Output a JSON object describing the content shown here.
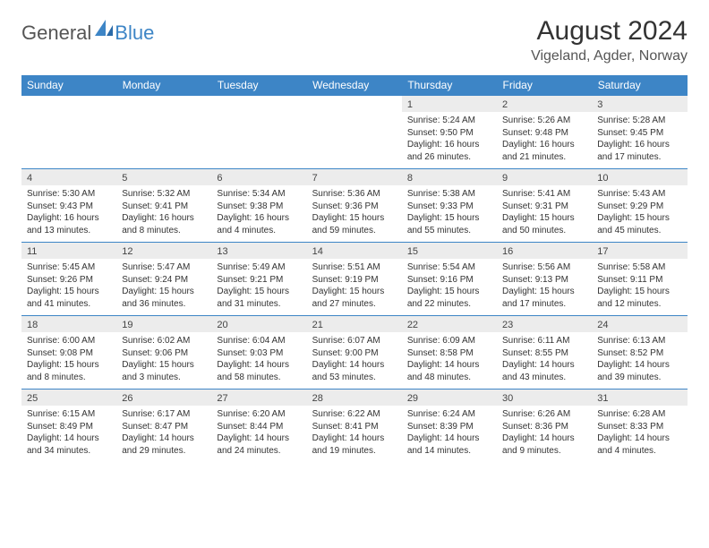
{
  "logo": {
    "text1": "General",
    "text2": "Blue"
  },
  "title": "August 2024",
  "location": "Vigeland, Agder, Norway",
  "colors": {
    "header_blue": "#3d85c6",
    "row_divider": "#3d85c6",
    "daynum_bg": "#ececec",
    "page_bg": "#ffffff",
    "text": "#333333"
  },
  "typography": {
    "title_fontsize": 30,
    "location_fontsize": 16,
    "header_fontsize": 12,
    "cell_fontsize": 10,
    "daynum_fontsize": 11
  },
  "calendar": {
    "type": "table",
    "weekday_headers": [
      "Sunday",
      "Monday",
      "Tuesday",
      "Wednesday",
      "Thursday",
      "Friday",
      "Saturday"
    ],
    "weeks": [
      [
        null,
        null,
        null,
        null,
        {
          "day": "1",
          "sunrise": "5:24 AM",
          "sunset": "9:50 PM",
          "daylight_l1": "Daylight: 16 hours",
          "daylight_l2": "and 26 minutes."
        },
        {
          "day": "2",
          "sunrise": "5:26 AM",
          "sunset": "9:48 PM",
          "daylight_l1": "Daylight: 16 hours",
          "daylight_l2": "and 21 minutes."
        },
        {
          "day": "3",
          "sunrise": "5:28 AM",
          "sunset": "9:45 PM",
          "daylight_l1": "Daylight: 16 hours",
          "daylight_l2": "and 17 minutes."
        }
      ],
      [
        {
          "day": "4",
          "sunrise": "5:30 AM",
          "sunset": "9:43 PM",
          "daylight_l1": "Daylight: 16 hours",
          "daylight_l2": "and 13 minutes."
        },
        {
          "day": "5",
          "sunrise": "5:32 AM",
          "sunset": "9:41 PM",
          "daylight_l1": "Daylight: 16 hours",
          "daylight_l2": "and 8 minutes."
        },
        {
          "day": "6",
          "sunrise": "5:34 AM",
          "sunset": "9:38 PM",
          "daylight_l1": "Daylight: 16 hours",
          "daylight_l2": "and 4 minutes."
        },
        {
          "day": "7",
          "sunrise": "5:36 AM",
          "sunset": "9:36 PM",
          "daylight_l1": "Daylight: 15 hours",
          "daylight_l2": "and 59 minutes."
        },
        {
          "day": "8",
          "sunrise": "5:38 AM",
          "sunset": "9:33 PM",
          "daylight_l1": "Daylight: 15 hours",
          "daylight_l2": "and 55 minutes."
        },
        {
          "day": "9",
          "sunrise": "5:41 AM",
          "sunset": "9:31 PM",
          "daylight_l1": "Daylight: 15 hours",
          "daylight_l2": "and 50 minutes."
        },
        {
          "day": "10",
          "sunrise": "5:43 AM",
          "sunset": "9:29 PM",
          "daylight_l1": "Daylight: 15 hours",
          "daylight_l2": "and 45 minutes."
        }
      ],
      [
        {
          "day": "11",
          "sunrise": "5:45 AM",
          "sunset": "9:26 PM",
          "daylight_l1": "Daylight: 15 hours",
          "daylight_l2": "and 41 minutes."
        },
        {
          "day": "12",
          "sunrise": "5:47 AM",
          "sunset": "9:24 PM",
          "daylight_l1": "Daylight: 15 hours",
          "daylight_l2": "and 36 minutes."
        },
        {
          "day": "13",
          "sunrise": "5:49 AM",
          "sunset": "9:21 PM",
          "daylight_l1": "Daylight: 15 hours",
          "daylight_l2": "and 31 minutes."
        },
        {
          "day": "14",
          "sunrise": "5:51 AM",
          "sunset": "9:19 PM",
          "daylight_l1": "Daylight: 15 hours",
          "daylight_l2": "and 27 minutes."
        },
        {
          "day": "15",
          "sunrise": "5:54 AM",
          "sunset": "9:16 PM",
          "daylight_l1": "Daylight: 15 hours",
          "daylight_l2": "and 22 minutes."
        },
        {
          "day": "16",
          "sunrise": "5:56 AM",
          "sunset": "9:13 PM",
          "daylight_l1": "Daylight: 15 hours",
          "daylight_l2": "and 17 minutes."
        },
        {
          "day": "17",
          "sunrise": "5:58 AM",
          "sunset": "9:11 PM",
          "daylight_l1": "Daylight: 15 hours",
          "daylight_l2": "and 12 minutes."
        }
      ],
      [
        {
          "day": "18",
          "sunrise": "6:00 AM",
          "sunset": "9:08 PM",
          "daylight_l1": "Daylight: 15 hours",
          "daylight_l2": "and 8 minutes."
        },
        {
          "day": "19",
          "sunrise": "6:02 AM",
          "sunset": "9:06 PM",
          "daylight_l1": "Daylight: 15 hours",
          "daylight_l2": "and 3 minutes."
        },
        {
          "day": "20",
          "sunrise": "6:04 AM",
          "sunset": "9:03 PM",
          "daylight_l1": "Daylight: 14 hours",
          "daylight_l2": "and 58 minutes."
        },
        {
          "day": "21",
          "sunrise": "6:07 AM",
          "sunset": "9:00 PM",
          "daylight_l1": "Daylight: 14 hours",
          "daylight_l2": "and 53 minutes."
        },
        {
          "day": "22",
          "sunrise": "6:09 AM",
          "sunset": "8:58 PM",
          "daylight_l1": "Daylight: 14 hours",
          "daylight_l2": "and 48 minutes."
        },
        {
          "day": "23",
          "sunrise": "6:11 AM",
          "sunset": "8:55 PM",
          "daylight_l1": "Daylight: 14 hours",
          "daylight_l2": "and 43 minutes."
        },
        {
          "day": "24",
          "sunrise": "6:13 AM",
          "sunset": "8:52 PM",
          "daylight_l1": "Daylight: 14 hours",
          "daylight_l2": "and 39 minutes."
        }
      ],
      [
        {
          "day": "25",
          "sunrise": "6:15 AM",
          "sunset": "8:49 PM",
          "daylight_l1": "Daylight: 14 hours",
          "daylight_l2": "and 34 minutes."
        },
        {
          "day": "26",
          "sunrise": "6:17 AM",
          "sunset": "8:47 PM",
          "daylight_l1": "Daylight: 14 hours",
          "daylight_l2": "and 29 minutes."
        },
        {
          "day": "27",
          "sunrise": "6:20 AM",
          "sunset": "8:44 PM",
          "daylight_l1": "Daylight: 14 hours",
          "daylight_l2": "and 24 minutes."
        },
        {
          "day": "28",
          "sunrise": "6:22 AM",
          "sunset": "8:41 PM",
          "daylight_l1": "Daylight: 14 hours",
          "daylight_l2": "and 19 minutes."
        },
        {
          "day": "29",
          "sunrise": "6:24 AM",
          "sunset": "8:39 PM",
          "daylight_l1": "Daylight: 14 hours",
          "daylight_l2": "and 14 minutes."
        },
        {
          "day": "30",
          "sunrise": "6:26 AM",
          "sunset": "8:36 PM",
          "daylight_l1": "Daylight: 14 hours",
          "daylight_l2": "and 9 minutes."
        },
        {
          "day": "31",
          "sunrise": "6:28 AM",
          "sunset": "8:33 PM",
          "daylight_l1": "Daylight: 14 hours",
          "daylight_l2": "and 4 minutes."
        }
      ]
    ],
    "labels": {
      "sunrise_prefix": "Sunrise: ",
      "sunset_prefix": "Sunset: "
    }
  }
}
